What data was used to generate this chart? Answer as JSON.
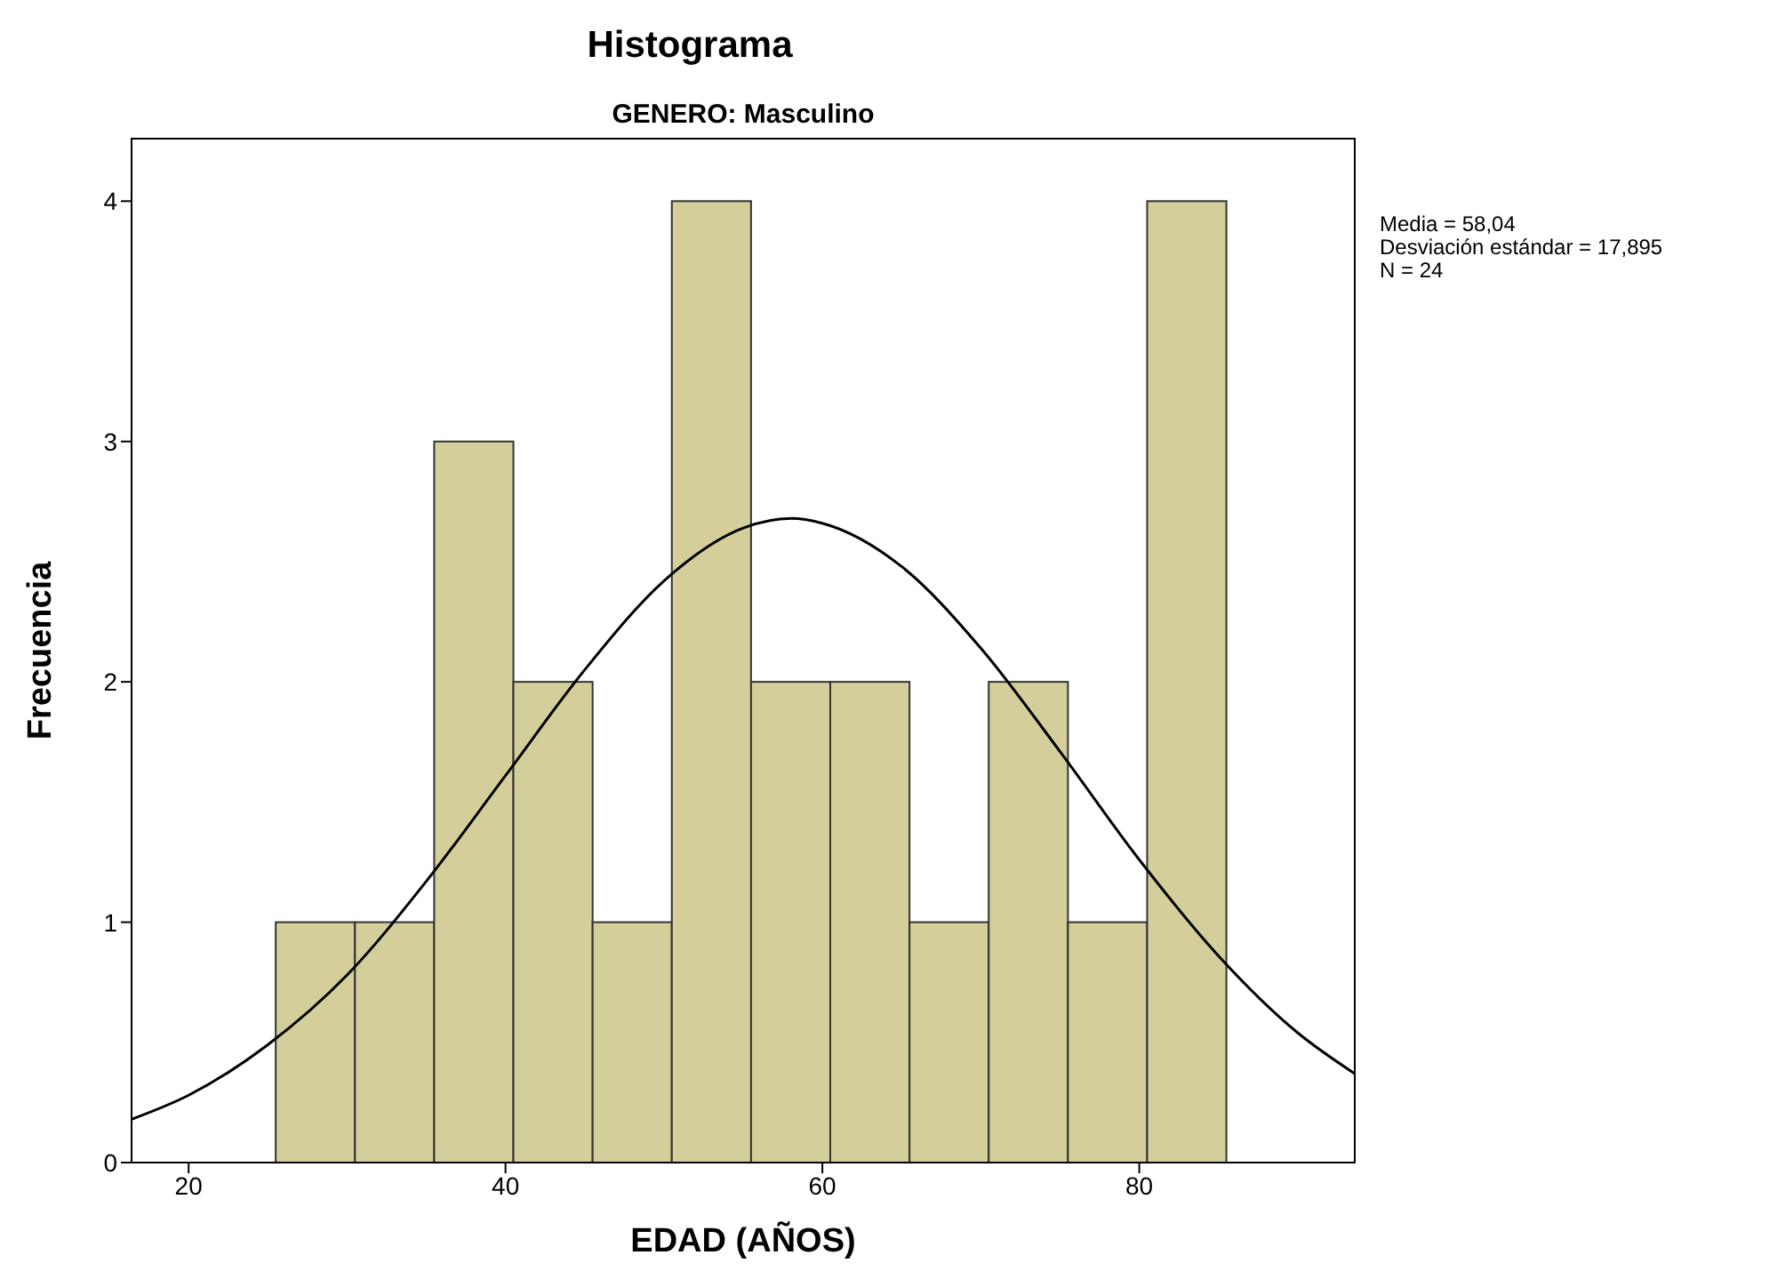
{
  "chart_data": {
    "type": "histogram",
    "title": "Histograma",
    "subtitle": "GENERO: Masculino",
    "xlabel": "EDAD (AÑOS)",
    "ylabel": "Frecuencia",
    "bins": [
      25.5,
      30.5,
      35.5,
      40.5,
      45.5,
      50.5,
      55.5,
      60.5,
      65.5,
      70.5,
      75.5,
      80.5,
      85.5
    ],
    "values": [
      1,
      1,
      3,
      2,
      1,
      4,
      2,
      2,
      1,
      2,
      1,
      4
    ],
    "color": "#d3ce9a",
    "series": [
      {
        "type": "line",
        "color": "#000000",
        "x": [
          16.4,
          20,
          25,
          30,
          35,
          40,
          45,
          50,
          55,
          58.04,
          60,
          65,
          70,
          75,
          80,
          85,
          90,
          93.6
        ],
        "values": [
          0.18,
          0.28,
          0.49,
          0.78,
          1.17,
          1.61,
          2.05,
          2.42,
          2.64,
          2.68,
          2.66,
          2.48,
          2.14,
          1.71,
          1.26,
          0.86,
          0.54,
          0.37
        ]
      }
    ],
    "xlim": [
      16.4,
      93.6
    ],
    "xticks": [
      20,
      40,
      60,
      80
    ],
    "ylim": [
      0,
      4.26
    ],
    "yticks": [
      0,
      1,
      2,
      3,
      4
    ],
    "marker": "none",
    "line_style": "solid",
    "annotations": [
      "Media = 58,04",
      "Desviación estándar = 17,895",
      "N = 24"
    ]
  }
}
